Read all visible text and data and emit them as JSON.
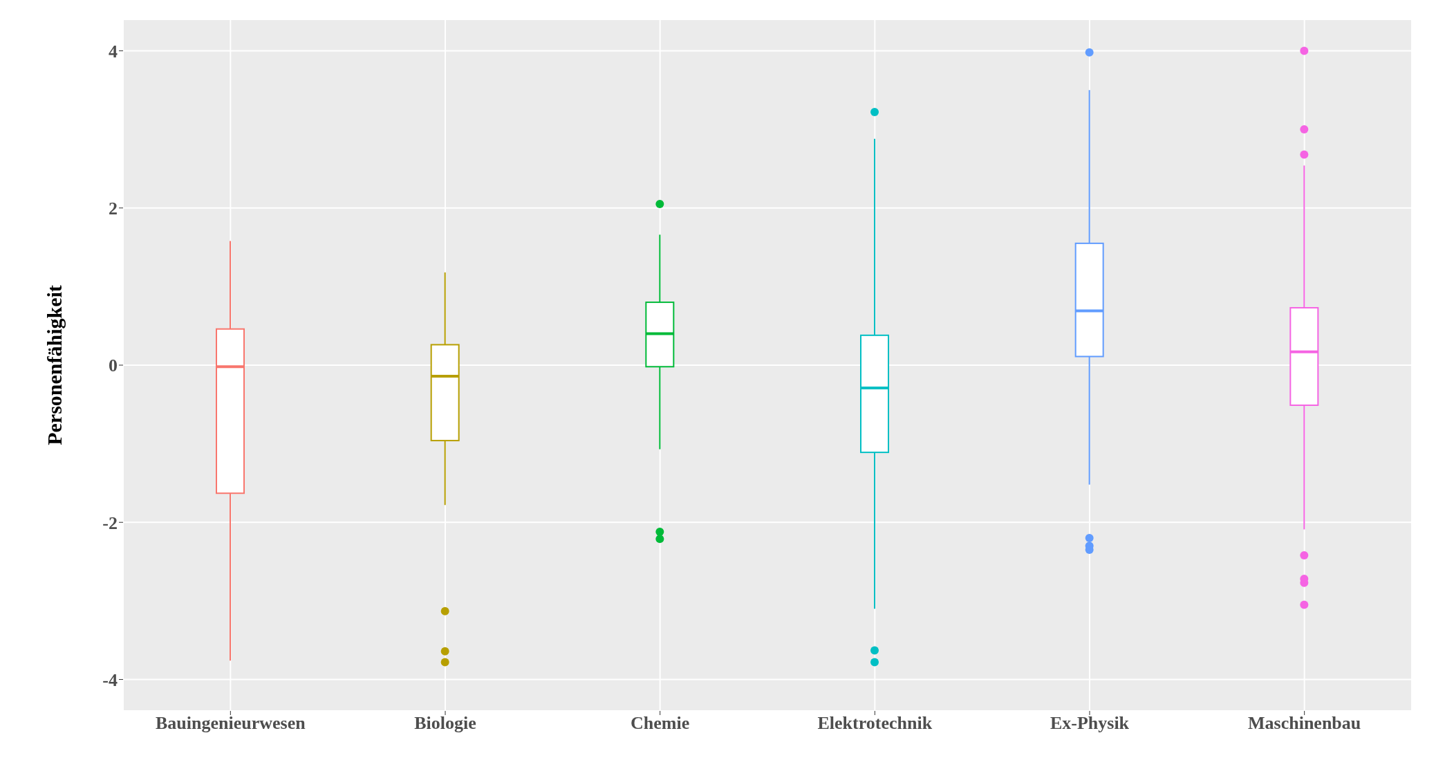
{
  "chart_data": {
    "type": "box",
    "ylabel": "Personenfähigkeit",
    "categories": [
      "Bauingenieurwesen",
      "Biologie",
      "Chemie",
      "Elektrotechnik",
      "Ex-Physik",
      "Maschinenbau"
    ],
    "colors": [
      "#f8766d",
      "#b79f00",
      "#00ba38",
      "#00bfc4",
      "#619cff",
      "#f564e3"
    ],
    "boxes": [
      {
        "low": -3.76,
        "q1": -1.63,
        "median": -0.02,
        "q3": 0.46,
        "high": 1.58
      },
      {
        "low": -1.78,
        "q1": -0.96,
        "median": -0.14,
        "q3": 0.26,
        "high": 1.18,
        "outliers": [
          -3.13,
          -3.64,
          -3.78
        ]
      },
      {
        "low": -1.07,
        "q1": -0.02,
        "median": 0.4,
        "q3": 0.8,
        "high": 1.66,
        "outliers": [
          2.05,
          -2.12,
          -2.21
        ]
      },
      {
        "low": -3.1,
        "q1": -1.11,
        "median": -0.29,
        "q3": 0.38,
        "high": 2.88,
        "outliers": [
          3.22,
          -3.63,
          -3.78
        ]
      },
      {
        "low": -1.52,
        "q1": 0.11,
        "median": 0.69,
        "q3": 1.55,
        "high": 3.5,
        "outliers": [
          3.98,
          -2.2,
          -2.3,
          -2.35
        ]
      },
      {
        "low": -2.09,
        "q1": -0.51,
        "median": 0.17,
        "q3": 0.73,
        "high": 2.54,
        "outliers": [
          4.0,
          3.0,
          2.68,
          -2.42,
          -2.72,
          -2.77,
          -3.05
        ]
      }
    ],
    "ylim": [
      -4.4,
      4.4
    ],
    "yticks": [
      -4,
      -2,
      0,
      2,
      4
    ],
    "grid": true
  }
}
